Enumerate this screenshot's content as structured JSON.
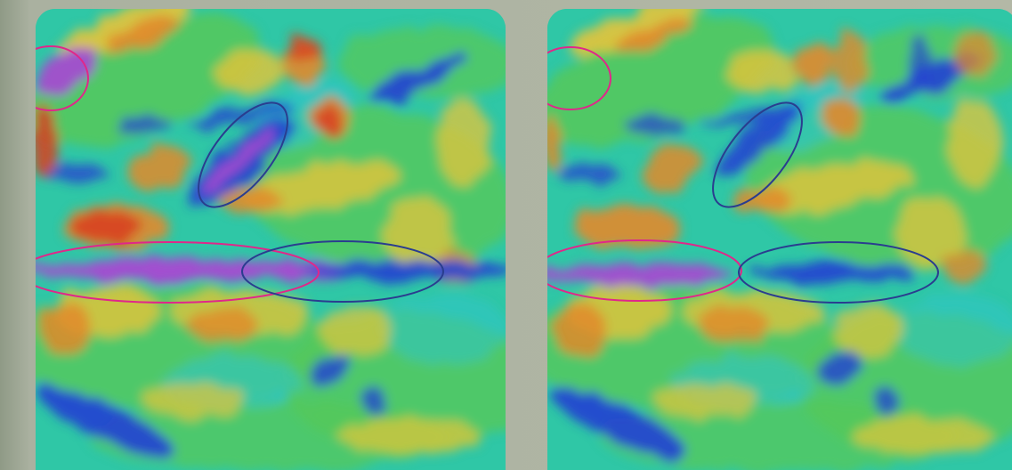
{
  "colors": {
    "background": "#b3b8a6",
    "base": "#2fc7a6",
    "low_cyan": "#2ec4c8",
    "green": "#55c85a",
    "yellow": "#e6c43a",
    "orange": "#e28a2c",
    "red": "#d84022",
    "blue": "#2446d0",
    "violet": "#a44bd0",
    "magenta_outline": "#e0278a",
    "navy_outline": "#2a3d8f"
  },
  "panels": [
    {
      "name": "left",
      "emphasis": "stronger"
    },
    {
      "name": "right",
      "emphasis": "weaker"
    }
  ]
}
